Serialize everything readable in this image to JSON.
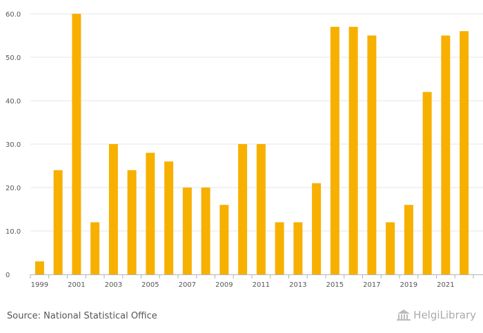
{
  "chart_data": {
    "type": "bar",
    "title": "",
    "xlabel": "",
    "ylabel": "",
    "categories": [
      "1999",
      "2000",
      "2001",
      "2002",
      "2003",
      "2004",
      "2005",
      "2006",
      "2007",
      "2008",
      "2009",
      "2010",
      "2011",
      "2012",
      "2013",
      "2014",
      "2015",
      "2016",
      "2017",
      "2018",
      "2019",
      "2020",
      "2021",
      "2022"
    ],
    "values": [
      3,
      24,
      60,
      12,
      30,
      24,
      28,
      26,
      20,
      20,
      16,
      30,
      30,
      12,
      12,
      21,
      57,
      57,
      55,
      12,
      16,
      42,
      55,
      56
    ],
    "x_tick_labels": [
      "1999",
      "2001",
      "2003",
      "2005",
      "2007",
      "2009",
      "2011",
      "2013",
      "2015",
      "2017",
      "2019",
      "2021"
    ],
    "y_ticks": [
      0,
      10,
      20,
      30,
      40,
      50,
      60
    ],
    "y_tick_labels": [
      "0",
      "10.0",
      "20.0",
      "30.0",
      "40.0",
      "50.0",
      "60.0"
    ],
    "ylim": [
      0,
      60
    ],
    "grid": true,
    "legend": "none",
    "bar_color": "#F7B000",
    "grid_color": "#e6e6e6",
    "axis_color": "#b3b3b3"
  },
  "footer": {
    "source": "Source: National Statistical Office",
    "logo_text": "HelgiLibrary",
    "logo_icon": "library-building-icon"
  }
}
